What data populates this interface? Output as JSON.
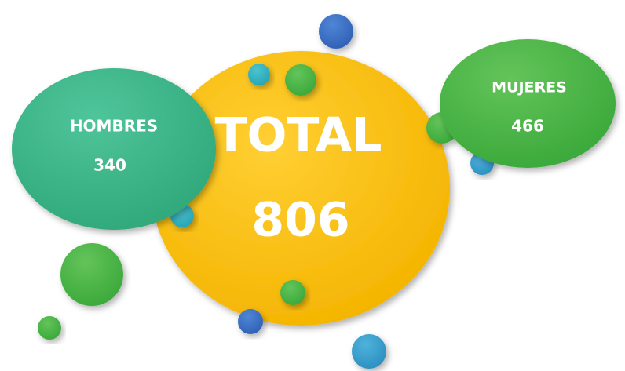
{
  "bubbles": [
    {
      "label": "TOTAL",
      "value": 806
    },
    {
      "label": "HOMBRES",
      "value": 340
    },
    {
      "label": "MUJERES",
      "value": 466
    }
  ]
}
